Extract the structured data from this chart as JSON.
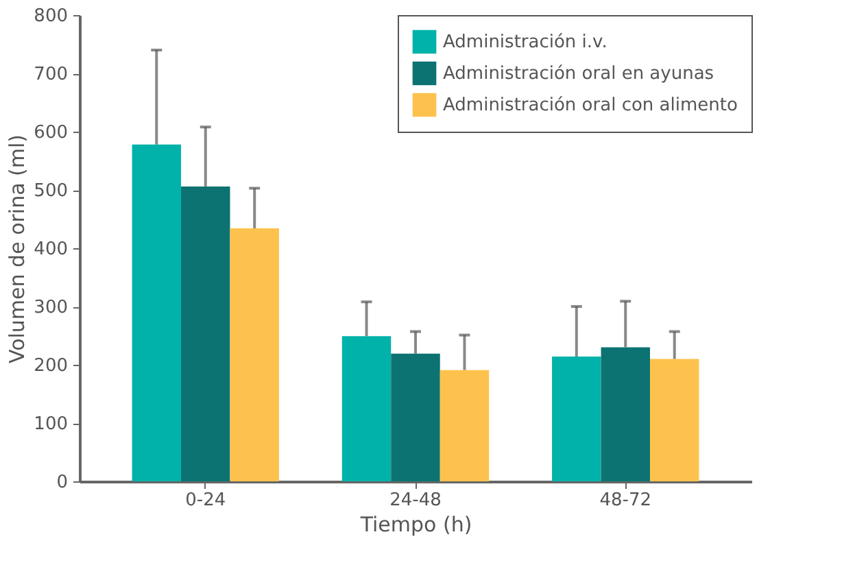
{
  "chart_data": {
    "type": "bar",
    "xlabel": "Tiempo (h)",
    "ylabel": "Volumen de orina (ml)",
    "categories": [
      "0-24",
      "24-48",
      "48-72"
    ],
    "series": [
      {
        "name": "Administración i.v.",
        "color": "#00b2a9",
        "values": [
          578,
          249,
          214
        ],
        "errors": [
          [
            578,
            740
          ],
          [
            249,
            308
          ],
          [
            214,
            300
          ]
        ]
      },
      {
        "name": "Administración oral en ayunas",
        "color": "#0c7272",
        "values": [
          506,
          219,
          230
        ],
        "errors": [
          [
            506,
            608
          ],
          [
            219,
            257
          ],
          [
            230,
            309
          ]
        ]
      },
      {
        "name": "Administración oral con alimento",
        "color": "#fdc24e",
        "values": [
          434,
          191,
          210
        ],
        "errors": [
          [
            434,
            503
          ],
          [
            191,
            251
          ],
          [
            210,
            257
          ]
        ]
      }
    ],
    "ylim": [
      0,
      800
    ],
    "yticks": [
      0,
      100,
      200,
      300,
      400,
      500,
      600,
      700,
      800
    ],
    "grid": false,
    "legend": "top right"
  }
}
